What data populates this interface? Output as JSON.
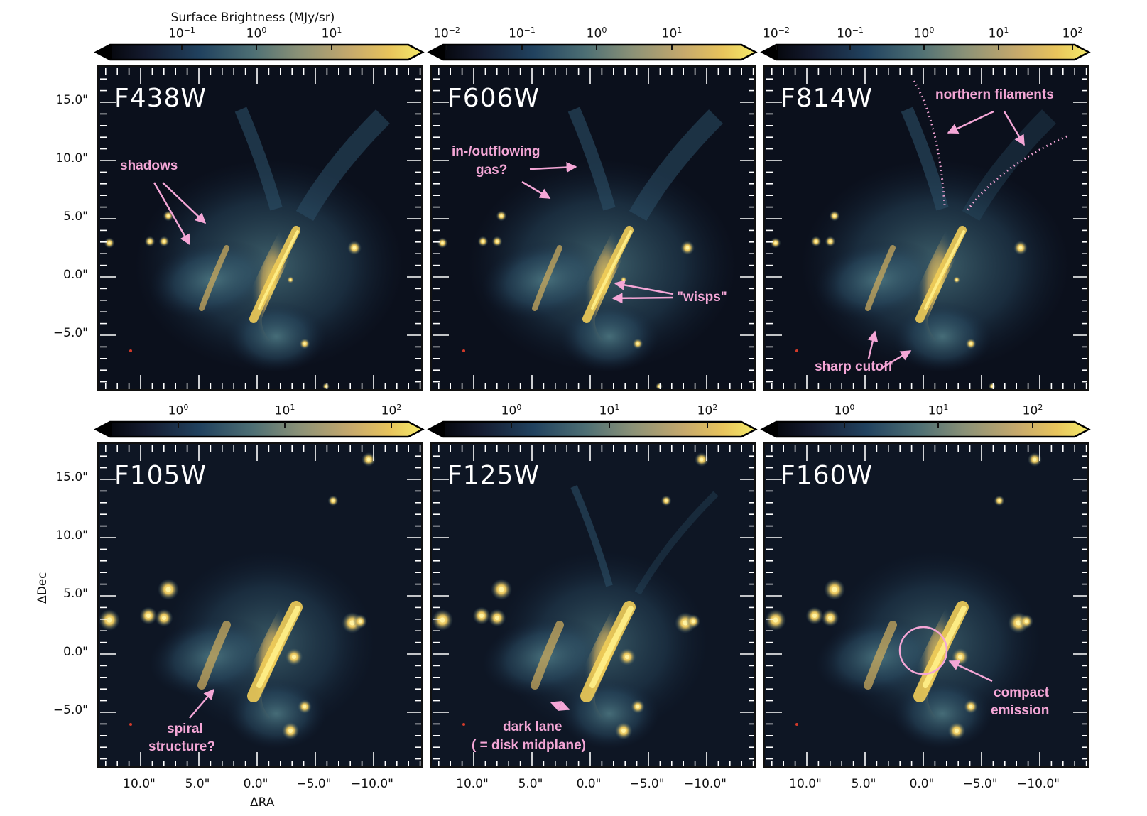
{
  "figure": {
    "colorbar_title": "Surface Brightness (MJy/sr)",
    "x_axis_label": "ΔRA",
    "y_axis_label": "ΔDec",
    "x_tick_labels": [
      "10.0\"",
      "5.0\"",
      "0.0\"",
      "−5.0\"",
      "−10.0\""
    ],
    "y_tick_labels": [
      "15.0\"",
      "10.0\"",
      "5.0\"",
      "0.0\"",
      "−5.0\""
    ],
    "colormap": [
      "#000000",
      "#141a2e",
      "#21425f",
      "#4d6f74",
      "#8a9177",
      "#c6a96c",
      "#e8c45c",
      "#f4ea6a"
    ],
    "annotation_color": "#f4a6d6"
  },
  "colorbars": [
    {
      "ticks": [
        {
          "base": "10",
          "exp": "−1"
        },
        {
          "base": "10",
          "exp": "0"
        },
        {
          "base": "10",
          "exp": "1"
        }
      ]
    },
    {
      "ticks": [
        {
          "base": "10",
          "exp": "−2"
        },
        {
          "base": "10",
          "exp": "−1"
        },
        {
          "base": "10",
          "exp": "0"
        },
        {
          "base": "10",
          "exp": "1"
        }
      ]
    },
    {
      "ticks": [
        {
          "base": "10",
          "exp": "−2"
        },
        {
          "base": "10",
          "exp": "−1"
        },
        {
          "base": "10",
          "exp": "0"
        },
        {
          "base": "10",
          "exp": "1"
        },
        {
          "base": "10",
          "exp": "2"
        }
      ]
    },
    {
      "ticks": [
        {
          "base": "10",
          "exp": "0"
        },
        {
          "base": "10",
          "exp": "1"
        },
        {
          "base": "10",
          "exp": "2"
        }
      ]
    },
    {
      "ticks": [
        {
          "base": "10",
          "exp": "0"
        },
        {
          "base": "10",
          "exp": "1"
        },
        {
          "base": "10",
          "exp": "2"
        }
      ]
    },
    {
      "ticks": [
        {
          "base": "10",
          "exp": "0"
        },
        {
          "base": "10",
          "exp": "1"
        },
        {
          "base": "10",
          "exp": "2"
        }
      ]
    }
  ],
  "panels": [
    {
      "filter": "F438W",
      "annotations": [
        "shadows"
      ]
    },
    {
      "filter": "F606W",
      "annotations": [
        "in-/outflowing",
        "gas?",
        "\"wisps\""
      ]
    },
    {
      "filter": "F814W",
      "annotations": [
        "northern filaments",
        "sharp cutoff"
      ]
    },
    {
      "filter": "F105W",
      "annotations": [
        "spiral",
        "structure?"
      ]
    },
    {
      "filter": "F125W",
      "annotations": [
        "dark lane",
        "( = disk midplane)"
      ]
    },
    {
      "filter": "F160W",
      "annotations": [
        "compact",
        "emission"
      ]
    }
  ]
}
